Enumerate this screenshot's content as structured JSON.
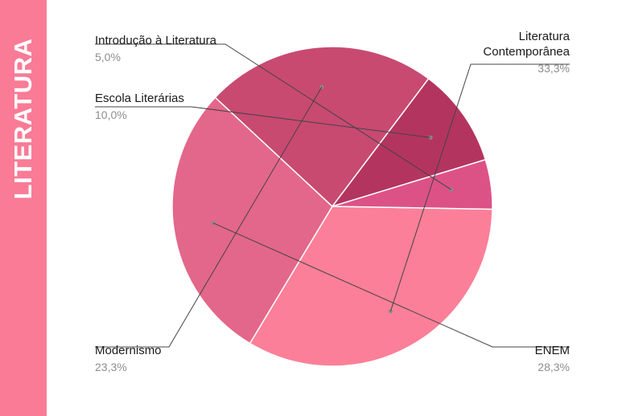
{
  "sidebar": {
    "title": "LITERATURA"
  },
  "chart_data": {
    "type": "pie",
    "slices": [
      {
        "label": "Literatura Contemporânea",
        "label_lines": [
          "Literatura",
          "Contemporânea"
        ],
        "pct_text": "33,3%",
        "value": 33.3,
        "color": "#fb7f98"
      },
      {
        "label": "ENEM",
        "label_lines": [
          "ENEM"
        ],
        "pct_text": "28,3%",
        "value": 28.3,
        "color": "#e3678a"
      },
      {
        "label": "Modernismo",
        "label_lines": [
          "Modernismo"
        ],
        "pct_text": "23,3%",
        "value": 23.3,
        "color": "#c84a70"
      },
      {
        "label": "Escola Literárias",
        "label_lines": [
          "Escola Literárias"
        ],
        "pct_text": "10,0%",
        "value": 10.0,
        "color": "#b3355f"
      },
      {
        "label": "Introdução à Literatura",
        "label_lines": [
          "Introdução à Literatura"
        ],
        "pct_text": "5,0%",
        "value": 5.0,
        "color": "#dc5287"
      }
    ]
  }
}
